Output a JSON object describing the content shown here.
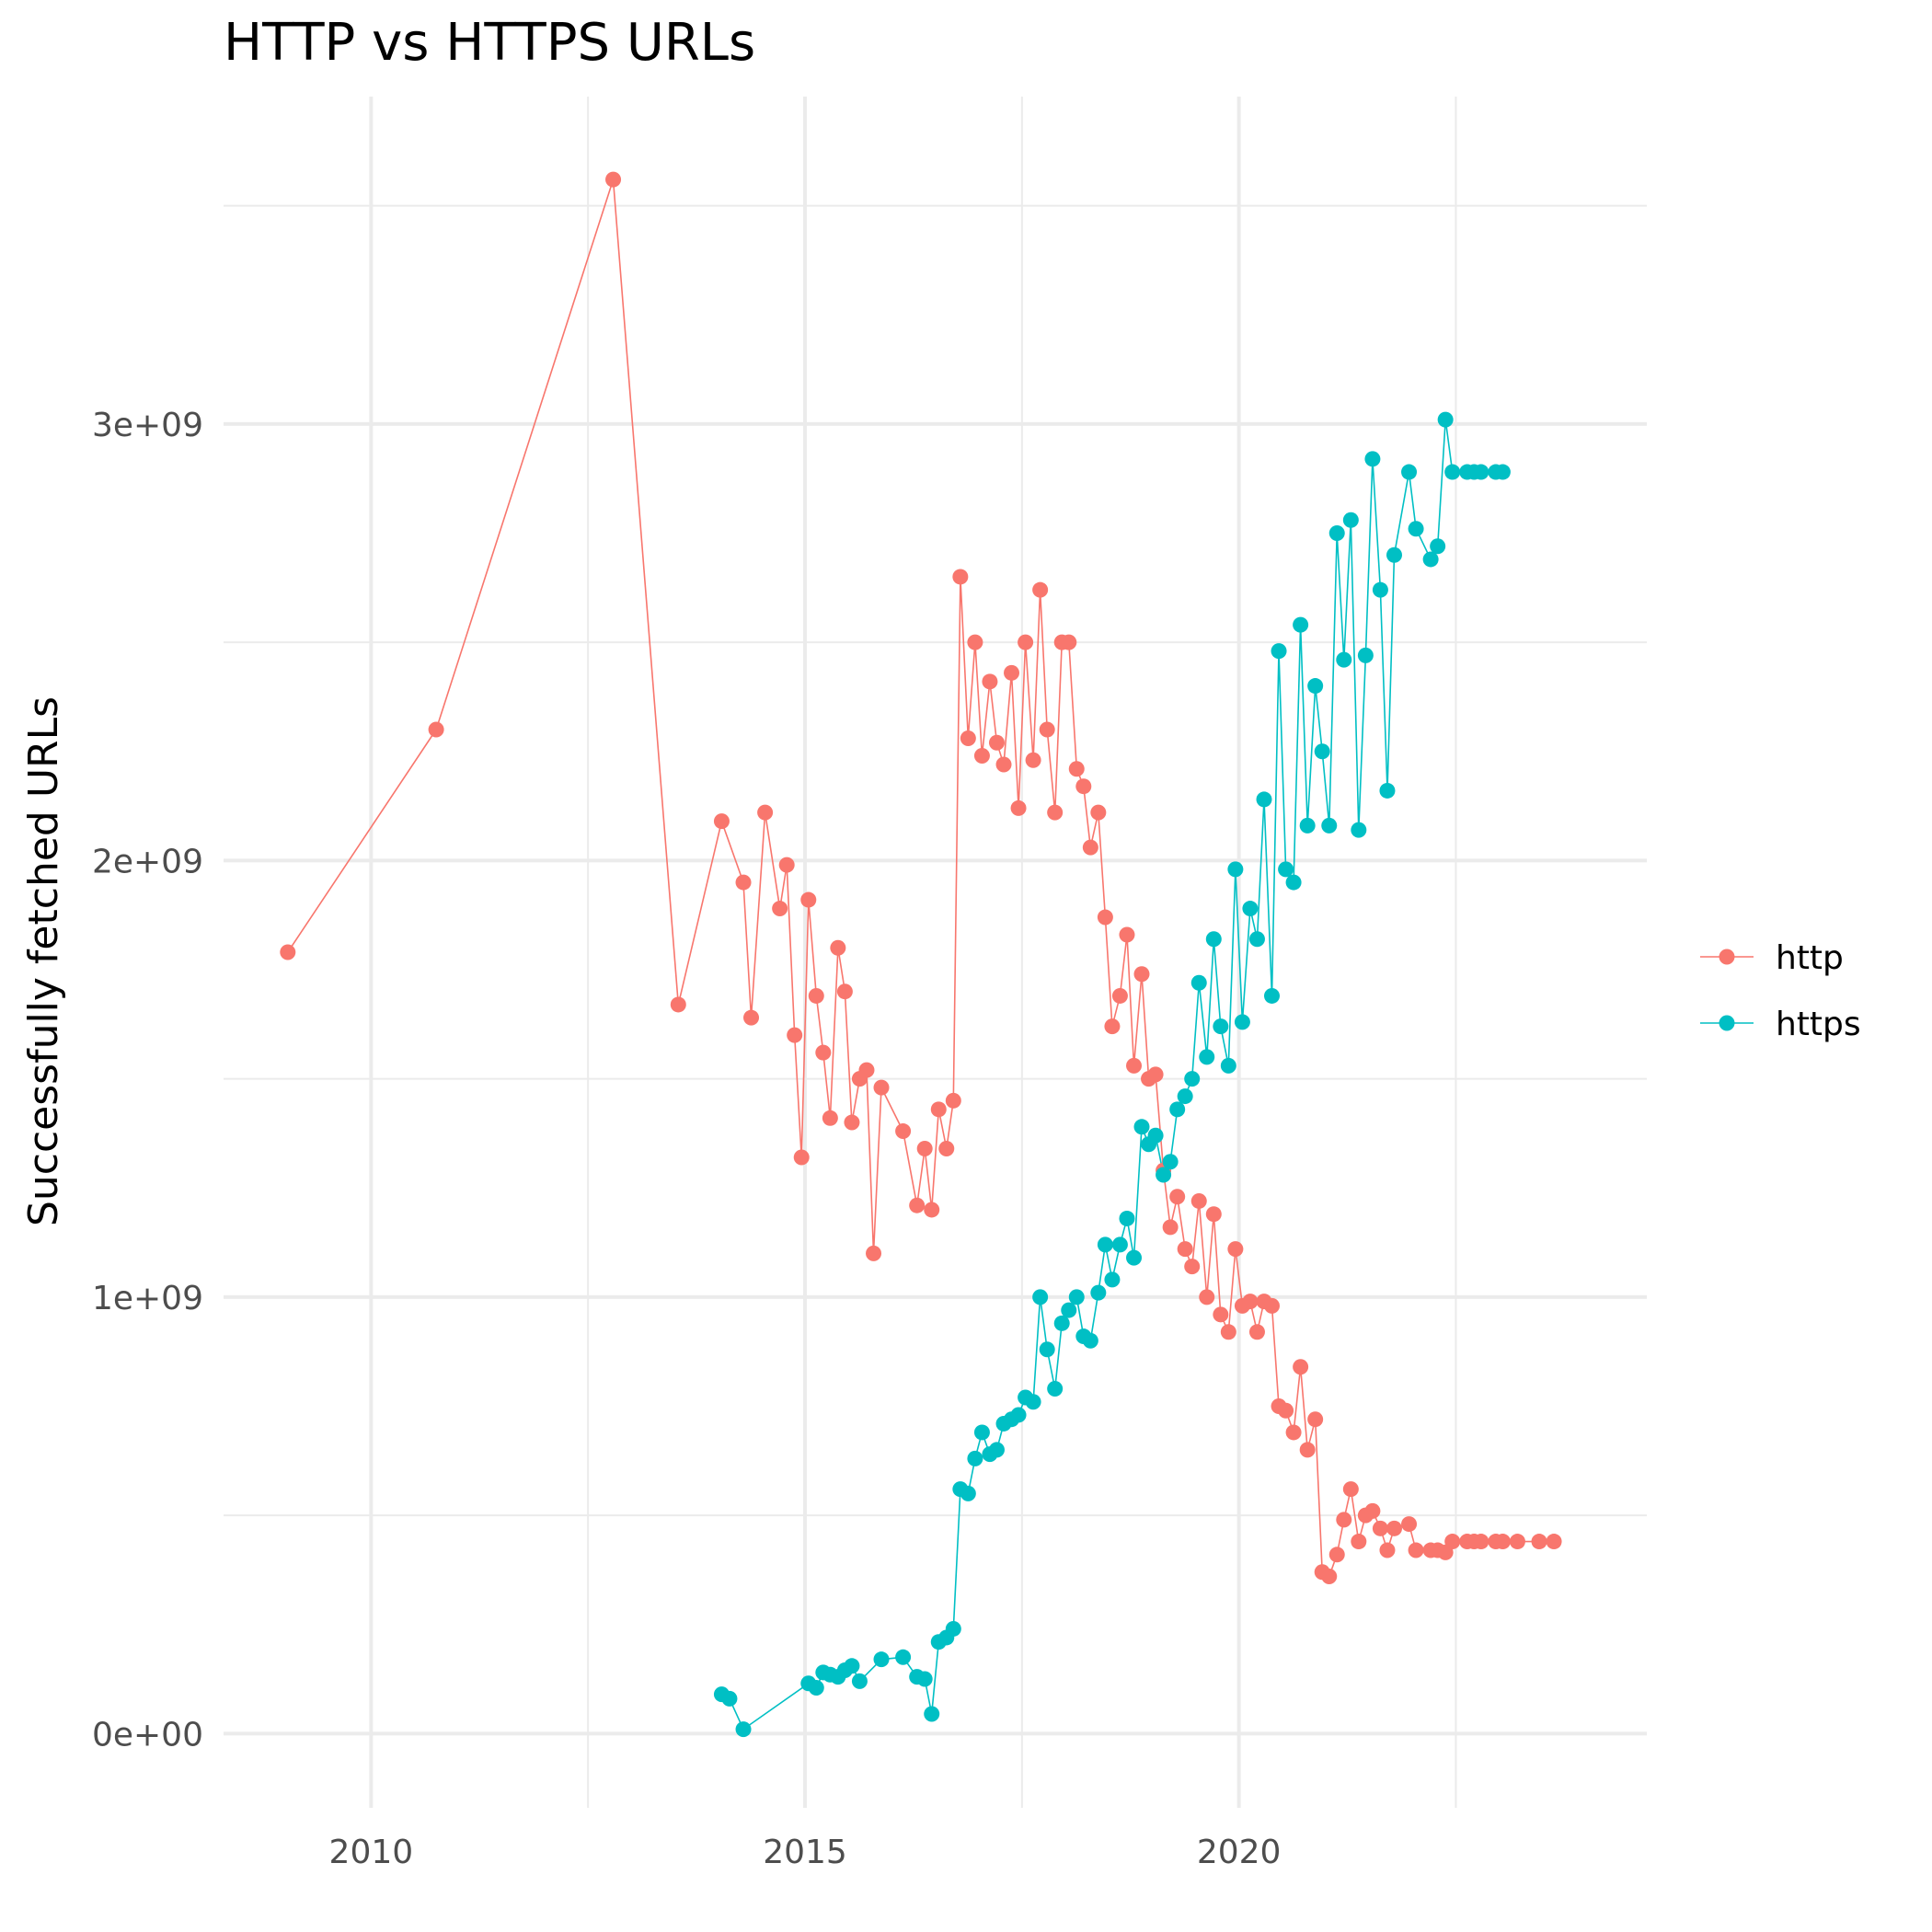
{
  "chart_data": {
    "type": "line",
    "title": "HTTP vs HTTPS URLs",
    "xlabel": "",
    "ylabel": "Successfully fetched URLs",
    "xlim": [
      2008.3,
      2024.7
    ],
    "ylim": [
      -170000000,
      3750000000
    ],
    "x_ticks": [
      2010,
      2015,
      2020
    ],
    "x_tick_labels": [
      "2010",
      "2015",
      "2020"
    ],
    "y_ticks": [
      0,
      1000000000,
      2000000000,
      3000000000
    ],
    "y_tick_labels": [
      "0e+00",
      "1e+09",
      "2e+09",
      "3e+09"
    ],
    "grid": true,
    "legend_position": "right",
    "series": [
      {
        "name": "http",
        "color": "#F8766D",
        "x": [
          2009.04,
          2010.75,
          2012.79,
          2013.54,
          2014.04,
          2014.29,
          2014.38,
          2014.54,
          2014.71,
          2014.79,
          2014.88,
          2014.96,
          2015.04,
          2015.13,
          2015.21,
          2015.29,
          2015.38,
          2015.46,
          2015.54,
          2015.63,
          2015.71,
          2015.79,
          2015.88,
          2016.13,
          2016.29,
          2016.38,
          2016.46,
          2016.54,
          2016.63,
          2016.71,
          2016.79,
          2016.88,
          2016.96,
          2017.04,
          2017.13,
          2017.21,
          2017.29,
          2017.38,
          2017.46,
          2017.54,
          2017.63,
          2017.71,
          2017.79,
          2017.88,
          2017.96,
          2018.04,
          2018.13,
          2018.21,
          2018.29,
          2018.38,
          2018.46,
          2018.54,
          2018.63,
          2018.71,
          2018.79,
          2018.88,
          2018.96,
          2019.04,
          2019.13,
          2019.21,
          2019.29,
          2019.38,
          2019.46,
          2019.54,
          2019.63,
          2019.71,
          2019.79,
          2019.88,
          2019.96,
          2020.04,
          2020.13,
          2020.21,
          2020.29,
          2020.38,
          2020.46,
          2020.54,
          2020.63,
          2020.71,
          2020.79,
          2020.88,
          2020.96,
          2021.04,
          2021.13,
          2021.21,
          2021.29,
          2021.38,
          2021.46,
          2021.54,
          2021.63,
          2021.71,
          2021.79,
          2021.96,
          2022.04,
          2022.21,
          2022.29,
          2022.38,
          2022.46,
          2022.63,
          2022.71,
          2022.79,
          2022.96,
          2023.04,
          2023.21,
          2023.46,
          2023.63
        ],
        "y": [
          1790000000,
          2300000000,
          3560000000,
          1670000000,
          2090000000,
          1950000000,
          1640000000,
          2110000000,
          1890000000,
          1990000000,
          1600000000,
          1320000000,
          1910000000,
          1690000000,
          1560000000,
          1410000000,
          1800000000,
          1700000000,
          1400000000,
          1500000000,
          1520000000,
          1100000000,
          1480000000,
          1380000000,
          1210000000,
          1340000000,
          1200000000,
          1430000000,
          1340000000,
          1450000000,
          2650000000,
          2280000000,
          2500000000,
          2240000000,
          2410000000,
          2270000000,
          2220000000,
          2430000000,
          2120000000,
          2500000000,
          2230000000,
          2620000000,
          2300000000,
          2110000000,
          2500000000,
          2500000000,
          2210000000,
          2170000000,
          2030000000,
          2110000000,
          1870000000,
          1620000000,
          1690000000,
          1830000000,
          1530000000,
          1740000000,
          1500000000,
          1510000000,
          1290000000,
          1160000000,
          1230000000,
          1110000000,
          1070000000,
          1220000000,
          1000000000,
          1190000000,
          960000000,
          920000000,
          1110000000,
          980000000,
          990000000,
          920000000,
          990000000,
          980000000,
          750000000,
          740000000,
          690000000,
          840000000,
          650000000,
          720000000,
          370000000,
          360000000,
          410000000,
          490000000,
          560000000,
          440000000,
          500000000,
          510000000,
          470000000,
          420000000,
          470000000,
          480000000,
          420000000,
          420000000,
          420000000,
          415000000,
          440000000,
          440000000,
          440000000,
          440000000,
          440000000,
          440000000,
          440000000,
          440000000,
          440000000
        ],
        "_note_": ""
      },
      {
        "name": "https",
        "color": "#00BFC4",
        "x": [
          2014.04,
          2014.13,
          2014.29,
          2015.04,
          2015.13,
          2015.21,
          2015.29,
          2015.38,
          2015.46,
          2015.54,
          2015.63,
          2015.88,
          2016.13,
          2016.29,
          2016.38,
          2016.46,
          2016.54,
          2016.63,
          2016.71,
          2016.79,
          2016.88,
          2016.96,
          2017.04,
          2017.13,
          2017.21,
          2017.29,
          2017.38,
          2017.46,
          2017.54,
          2017.63,
          2017.71,
          2017.79,
          2017.88,
          2017.96,
          2018.04,
          2018.13,
          2018.21,
          2018.29,
          2018.38,
          2018.46,
          2018.54,
          2018.63,
          2018.71,
          2018.79,
          2018.88,
          2018.96,
          2019.04,
          2019.13,
          2019.21,
          2019.29,
          2019.38,
          2019.46,
          2019.54,
          2019.63,
          2019.71,
          2019.79,
          2019.88,
          2019.96,
          2020.04,
          2020.13,
          2020.21,
          2020.29,
          2020.38,
          2020.46,
          2020.54,
          2020.63,
          2020.71,
          2020.79,
          2020.88,
          2020.96,
          2021.04,
          2021.13,
          2021.21,
          2021.29,
          2021.38,
          2021.46,
          2021.54,
          2021.63,
          2021.71,
          2021.79,
          2021.96,
          2022.04,
          2022.21,
          2022.29,
          2022.38,
          2022.46,
          2022.63,
          2022.71,
          2022.79,
          2022.96,
          2023.04
        ],
        "y": [
          90000000,
          80000000,
          10000000,
          115000000,
          105000000,
          140000000,
          135000000,
          130000000,
          145000000,
          155000000,
          120000000,
          170000000,
          175000000,
          130000000,
          125000000,
          45000000,
          210000000,
          220000000,
          240000000,
          560000000,
          550000000,
          630000000,
          690000000,
          640000000,
          650000000,
          710000000,
          720000000,
          730000000,
          770000000,
          760000000,
          1000000000,
          880000000,
          790000000,
          940000000,
          970000000,
          1000000000,
          910000000,
          900000000,
          1010000000,
          1120000000,
          1040000000,
          1120000000,
          1180000000,
          1090000000,
          1390000000,
          1350000000,
          1370000000,
          1280000000,
          1310000000,
          1430000000,
          1460000000,
          1500000000,
          1720000000,
          1550000000,
          1820000000,
          1620000000,
          1530000000,
          1980000000,
          1630000000,
          1890000000,
          1820000000,
          2140000000,
          1690000000,
          2480000000,
          1980000000,
          1950000000,
          2540000000,
          2080000000,
          2400000000,
          2250000000,
          2080000000,
          2750000000,
          2460000000,
          2780000000,
          2070000000,
          2470000000,
          2920000000,
          2620000000,
          2160000000,
          2700000000,
          2890000000,
          2760000000,
          2690000000,
          2720000000,
          3010000000,
          2890000000,
          2890000000,
          2890000000,
          2890000000,
          2890000000,
          2890000000
        ]
      }
    ]
  }
}
